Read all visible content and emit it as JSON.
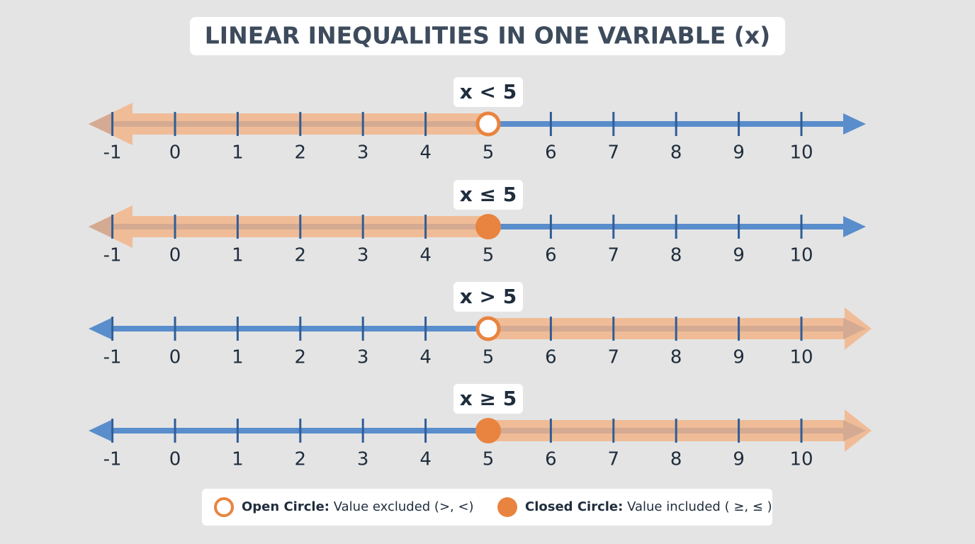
{
  "title": "LINEAR INEQUALITIES IN ONE VARIABLE (x)",
  "ticks": [
    -1,
    0,
    1,
    2,
    3,
    4,
    5,
    6,
    7,
    8,
    9,
    10
  ],
  "lines": [
    {
      "label": "x < 5",
      "boundary": 5,
      "closed": false,
      "direction": "left"
    },
    {
      "label": "x ≤ 5",
      "boundary": 5,
      "closed": true,
      "direction": "left"
    },
    {
      "label": "x > 5",
      "boundary": 5,
      "closed": false,
      "direction": "right"
    },
    {
      "label": "x ≥ 5",
      "boundary": 5,
      "closed": true,
      "direction": "right"
    }
  ],
  "legend": [
    {
      "bold": "Open Circle:",
      "text": "Value excluded (>, <)",
      "closed": false
    },
    {
      "bold": "Closed Circle:",
      "text": "Value included ( ≥, ≤ )",
      "closed": true
    }
  ]
}
